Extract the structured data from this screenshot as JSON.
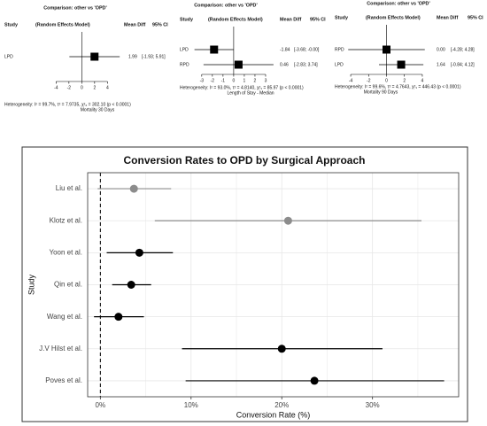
{
  "chart_data": [
    {
      "type": "forest",
      "title": "Comparison: other vs 'OPD'",
      "columns": [
        "Study",
        "(Random Effects Model)",
        "Mean Diff",
        "95% CI"
      ],
      "categories": [
        "LPD"
      ],
      "values": [
        1.99
      ],
      "lower": [
        -1.93
      ],
      "upper": [
        5.91
      ],
      "ci_labels": [
        "[-1.93; 5.91]"
      ],
      "xlim": [
        -4.6,
        6.3
      ],
      "xticks": [
        -4,
        -2,
        0,
        2,
        4
      ],
      "heterogeneity": "Heterogeneity: I² = 99.7%, τ² = 7.9735, χ²₂ = 302.10 (p < 0.0001)",
      "xlabel": "Mortality 30 Days"
    },
    {
      "type": "forest",
      "title": "Comparison: other vs 'OPD'",
      "columns": [
        "Study",
        "(Random Effects Model)",
        "Mean Diff",
        "95% CI"
      ],
      "categories": [
        "LPD",
        "RPD"
      ],
      "values": [
        -1.84,
        0.46
      ],
      "lower": [
        -3.68,
        -2.83
      ],
      "upper": [
        0,
        3.74
      ],
      "ci_labels": [
        "[-3.68; -0.00]",
        "[-2.83; 3.74]"
      ],
      "xlim": [
        -3.9,
        4.0
      ],
      "xticks": [
        -3,
        -2,
        -1,
        0,
        1,
        2,
        3
      ],
      "heterogeneity": "Heterogeneity: I² = 93.0%, τ² = 4.8140, χ²₁ = 85.97 (p < 0.0001)",
      "xlabel": "Length of Stay - Median"
    },
    {
      "type": "forest",
      "title": "Comparison: other vs 'OPD'",
      "columns": [
        "Study",
        "(Random Effects Model)",
        "Mean Diff",
        "95% CI"
      ],
      "categories": [
        "RPD",
        "LPD"
      ],
      "values": [
        0,
        1.64
      ],
      "value_labels": [
        "0.00",
        "1.64"
      ],
      "lower": [
        -4.28,
        -0.84
      ],
      "upper": [
        4.28,
        4.12
      ],
      "ci_labels": [
        "[-4.28; 4.28]",
        "[-0.84; 4.12]"
      ],
      "xlim": [
        -4.6,
        4.6
      ],
      "xticks": [
        -4,
        -2,
        0,
        2,
        4
      ],
      "heterogeneity": "Heterogeneity: I² = 99.6%, τ² = 4.7643, χ²₁ = 446.43 (p < 0.0001)",
      "xlabel": "Mortality 90 Days"
    },
    {
      "type": "errorbar",
      "title": "Conversion Rates to OPD by Surgical Approach",
      "xlabel": "Conversion Rate (%)",
      "ylabel": "Study",
      "categories": [
        "Liu et al.",
        "Klotz et al.",
        "Yoon et al.",
        "Qin et al.",
        "Wang et al.",
        "J.V Hilst et al.",
        "Poves et al."
      ],
      "values": [
        3.7,
        20.7,
        4.3,
        3.4,
        2.0,
        20.0,
        23.6
      ],
      "lower": [
        -0.3,
        6.0,
        0.7,
        1.3,
        -0.7,
        9.0,
        9.4
      ],
      "upper": [
        7.8,
        35.4,
        8.0,
        5.6,
        4.8,
        31.1,
        37.9
      ],
      "colors": [
        "#8c8c8c",
        "#8c8c8c",
        "#000000",
        "#000000",
        "#000000",
        "#000000",
        "#000000"
      ],
      "xlim": [
        -1.4,
        39.5
      ],
      "xticks": [
        {
          "value": 0,
          "label": "0%"
        },
        {
          "value": 10,
          "label": "10%"
        },
        {
          "value": 20,
          "label": "20%"
        },
        {
          "value": 30,
          "label": "30%"
        }
      ],
      "grid": true
    }
  ]
}
